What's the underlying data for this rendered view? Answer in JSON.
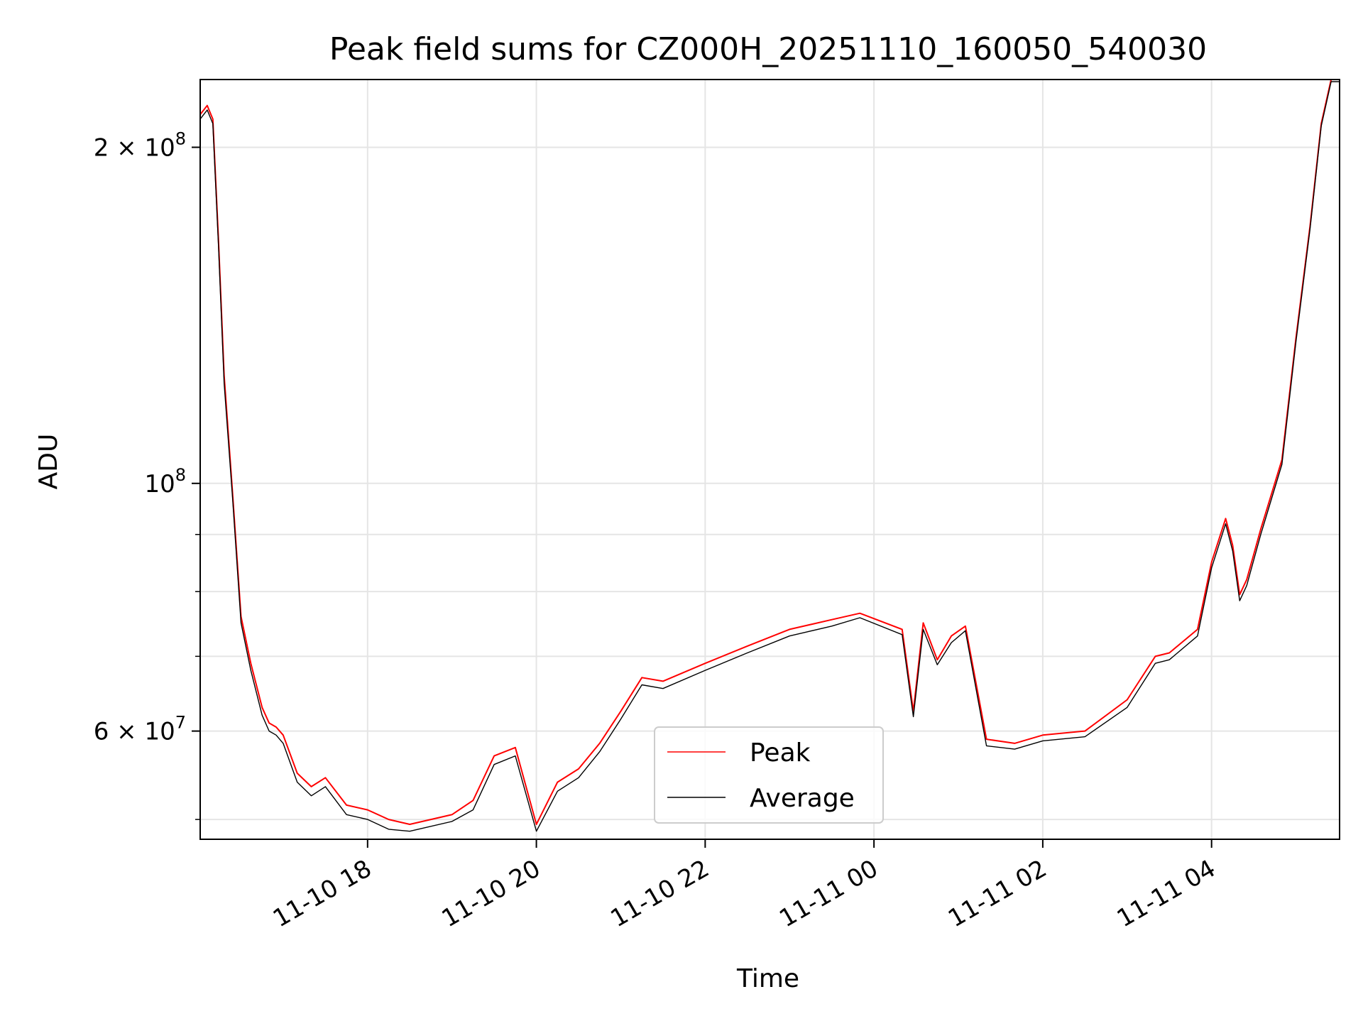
{
  "chart_data": {
    "type": "line",
    "title": "Peak field sums for CZ000H_20251110_160050_540030",
    "xlabel": "Time",
    "ylabel": "ADU",
    "yscale": "log",
    "ylim": [
      48000000,
      230000000
    ],
    "xlim": [
      "2025-11-10T16:01",
      "2025-11-11T05:31"
    ],
    "grid": true,
    "legend_position": "lower center",
    "x_ticks": [
      {
        "label": "11-10 18",
        "t": "2025-11-10T18:00"
      },
      {
        "label": "11-10 20",
        "t": "2025-11-10T20:00"
      },
      {
        "label": "11-10 22",
        "t": "2025-11-10T22:00"
      },
      {
        "label": "11-11 00",
        "t": "2025-11-11T00:00"
      },
      {
        "label": "11-11 02",
        "t": "2025-11-11T02:00"
      },
      {
        "label": "11-11 04",
        "t": "2025-11-11T04:00"
      }
    ],
    "y_ticks": [
      {
        "label_base": "2 × 10",
        "label_exp": "8",
        "value": 200000000
      },
      {
        "label_base": "10",
        "label_exp": "8",
        "value": 100000000
      },
      {
        "label_base": "6 × 10",
        "label_exp": "7",
        "value": 60000000
      }
    ],
    "y_minor_ticks": [
      50000000,
      70000000,
      80000000,
      90000000
    ],
    "x": [
      "2025-11-10T16:01",
      "2025-11-10T16:06",
      "2025-11-10T16:10",
      "2025-11-10T16:14",
      "2025-11-10T16:18",
      "2025-11-10T16:24",
      "2025-11-10T16:30",
      "2025-11-10T16:37",
      "2025-11-10T16:45",
      "2025-11-10T16:50",
      "2025-11-10T16:55",
      "2025-11-10T17:00",
      "2025-11-10T17:10",
      "2025-11-10T17:20",
      "2025-11-10T17:30",
      "2025-11-10T17:45",
      "2025-11-10T18:00",
      "2025-11-10T18:15",
      "2025-11-10T18:30",
      "2025-11-10T19:00",
      "2025-11-10T19:15",
      "2025-11-10T19:30",
      "2025-11-10T19:45",
      "2025-11-10T20:00",
      "2025-11-10T20:15",
      "2025-11-10T20:30",
      "2025-11-10T20:45",
      "2025-11-10T21:00",
      "2025-11-10T21:15",
      "2025-11-10T21:30",
      "2025-11-10T22:00",
      "2025-11-10T22:30",
      "2025-11-10T23:00",
      "2025-11-10T23:30",
      "2025-11-10T23:50",
      "2025-11-11T00:20",
      "2025-11-11T00:28",
      "2025-11-11T00:35",
      "2025-11-11T00:45",
      "2025-11-11T00:55",
      "2025-11-11T01:05",
      "2025-11-11T01:20",
      "2025-11-11T01:40",
      "2025-11-11T02:00",
      "2025-11-11T02:30",
      "2025-11-11T03:00",
      "2025-11-11T03:20",
      "2025-11-11T03:30",
      "2025-11-11T03:50",
      "2025-11-11T04:00",
      "2025-11-11T04:10",
      "2025-11-11T04:15",
      "2025-11-11T04:20",
      "2025-11-11T04:25",
      "2025-11-11T04:35",
      "2025-11-11T04:50",
      "2025-11-11T05:00",
      "2025-11-11T05:10",
      "2025-11-11T05:18",
      "2025-11-11T05:25",
      "2025-11-11T05:31"
    ],
    "series": [
      {
        "name": "Peak",
        "color": "#ff0000",
        "values": [
          214000000,
          218000000,
          212000000,
          165000000,
          125000000,
          98000000,
          76000000,
          69000000,
          63000000,
          61000000,
          60500000,
          59500000,
          55000000,
          53500000,
          54500000,
          51500000,
          51000000,
          50000000,
          49500000,
          50500000,
          52000000,
          57000000,
          58000000,
          49500000,
          54000000,
          55500000,
          58500000,
          62500000,
          67000000,
          66500000,
          69000000,
          71500000,
          74000000,
          75500000,
          76500000,
          74000000,
          62500000,
          75000000,
          69500000,
          73000000,
          74500000,
          59000000,
          58500000,
          59500000,
          60000000,
          64000000,
          70000000,
          70500000,
          74000000,
          85000000,
          93000000,
          88000000,
          79500000,
          82000000,
          91000000,
          105000000,
          135000000,
          170000000,
          210000000,
          230000000,
          230000000
        ]
      },
      {
        "name": "Average",
        "color": "#000000",
        "values": [
          212000000,
          216000000,
          210000000,
          163000000,
          123000000,
          97000000,
          75000000,
          68000000,
          62000000,
          60000000,
          59500000,
          58500000,
          54000000,
          52500000,
          53500000,
          50500000,
          50000000,
          49000000,
          48800000,
          49800000,
          51000000,
          56000000,
          57000000,
          48800000,
          53000000,
          54500000,
          57500000,
          61500000,
          66000000,
          65500000,
          68000000,
          70500000,
          73000000,
          74500000,
          75800000,
          73200000,
          61800000,
          74000000,
          68800000,
          72000000,
          73800000,
          58200000,
          57800000,
          58800000,
          59300000,
          63000000,
          69000000,
          69500000,
          73000000,
          84000000,
          92000000,
          87000000,
          78500000,
          81000000,
          90000000,
          104000000,
          134000000,
          169000000,
          209000000,
          229000000,
          229000000
        ]
      }
    ]
  }
}
